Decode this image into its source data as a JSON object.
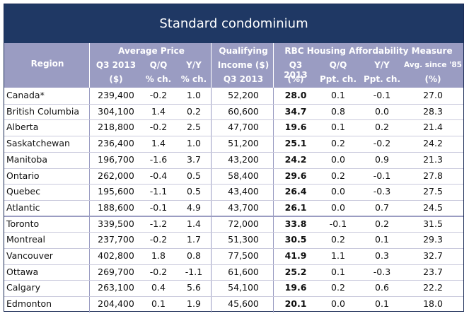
{
  "title": "Standard condominium",
  "headers": {
    "region": "Region",
    "avg_price": "Average Price",
    "qualifying": "Qualifying",
    "rbc": "RBC Housing Affordability Measure",
    "q3_2013": "Q3 2013",
    "qq": "Q/Q",
    "yy": "Y/Y",
    "income": "Income ($)",
    "avg_since": "Avg. since '85",
    "dollar": "($)",
    "pct_ch": "% ch.",
    "pct": "(%)",
    "ppt_ch": "Ppt. ch."
  },
  "rows": [
    {
      "region": "Canada*",
      "price": "239,400",
      "pq": "-0.2",
      "py": "1.0",
      "income": "52,200",
      "aff": "28.0",
      "aq": "0.1",
      "ay": "-0.1",
      "avg": "27.0"
    },
    {
      "region": "British Columbia",
      "price": "304,100",
      "pq": "1.4",
      "py": "0.2",
      "income": "60,600",
      "aff": "34.7",
      "aq": "0.8",
      "ay": "0.0",
      "avg": "28.3"
    },
    {
      "region": "Alberta",
      "price": "218,800",
      "pq": "-0.2",
      "py": "2.5",
      "income": "47,700",
      "aff": "19.6",
      "aq": "0.1",
      "ay": "0.2",
      "avg": "21.4"
    },
    {
      "region": "Saskatchewan",
      "price": "236,400",
      "pq": "1.4",
      "py": "1.0",
      "income": "51,200",
      "aff": "25.1",
      "aq": "0.2",
      "ay": "-0.2",
      "avg": "24.2"
    },
    {
      "region": "Manitoba",
      "price": "196,700",
      "pq": "-1.6",
      "py": "3.7",
      "income": "43,200",
      "aff": "24.2",
      "aq": "0.0",
      "ay": "0.9",
      "avg": "21.3"
    },
    {
      "region": "Ontario",
      "price": "262,000",
      "pq": "-0.4",
      "py": "0.5",
      "income": "58,400",
      "aff": "29.6",
      "aq": "0.2",
      "ay": "-0.1",
      "avg": "27.8"
    },
    {
      "region": "Quebec",
      "price": "195,600",
      "pq": "-1.1",
      "py": "0.5",
      "income": "43,400",
      "aff": "26.4",
      "aq": "0.0",
      "ay": "-0.3",
      "avg": "27.5"
    },
    {
      "region": "Atlantic",
      "price": "188,600",
      "pq": "-0.1",
      "py": "4.9",
      "income": "43,700",
      "aff": "26.1",
      "aq": "0.0",
      "ay": "0.7",
      "avg": "24.5"
    },
    {
      "region": "Toronto",
      "price": "339,500",
      "pq": "-1.2",
      "py": "1.4",
      "income": "72,000",
      "aff": "33.8",
      "aq": "-0.1",
      "ay": "0.2",
      "avg": "31.5"
    },
    {
      "region": "Montreal",
      "price": "237,700",
      "pq": "-0.2",
      "py": "1.7",
      "income": "51,300",
      "aff": "30.5",
      "aq": "0.2",
      "ay": "0.1",
      "avg": "29.3"
    },
    {
      "region": "Vancouver",
      "price": "402,800",
      "pq": "1.8",
      "py": "0.8",
      "income": "77,500",
      "aff": "41.9",
      "aq": "1.1",
      "ay": "0.3",
      "avg": "32.7"
    },
    {
      "region": "Ottawa",
      "price": "269,700",
      "pq": "-0.2",
      "py": "-1.1",
      "income": "61,600",
      "aff": "25.2",
      "aq": "0.1",
      "ay": "-0.3",
      "avg": "23.7"
    },
    {
      "region": "Calgary",
      "price": "263,100",
      "pq": "0.4",
      "py": "5.6",
      "income": "54,100",
      "aff": "19.6",
      "aq": "0.2",
      "ay": "0.6",
      "avg": "22.2"
    },
    {
      "region": "Edmonton",
      "price": "204,400",
      "pq": "0.1",
      "py": "1.9",
      "income": "45,600",
      "aff": "20.1",
      "aq": "0.0",
      "ay": "0.1",
      "avg": "18.0"
    }
  ]
}
